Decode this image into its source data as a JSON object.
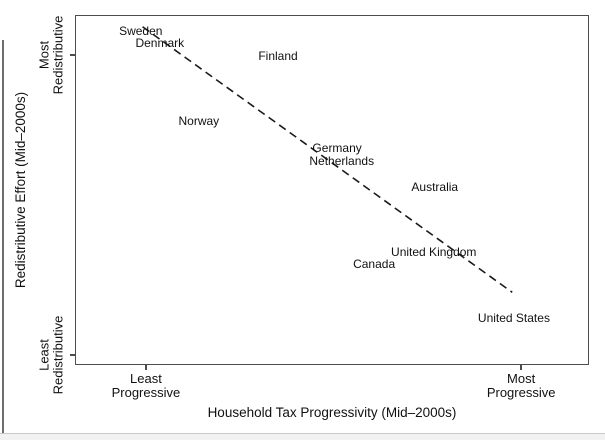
{
  "figure": {
    "background": "#ffffff",
    "left_edge_color": "#6e6e6e",
    "bottom_line_color": "#c9c9c9",
    "bottom_strip_color": "#f2f2f2"
  },
  "chart_data": {
    "type": "scatter",
    "title": "",
    "xlabel": "Household Tax Progressivity (Mid–2000s)",
    "ylabel": "Redistributive Effort (Mid–2000s)",
    "grid": false,
    "legend": "none",
    "axis_color": "#4d4d4d",
    "text_color": "#111111",
    "marker_style": "text-labels-only",
    "axis_ranges": {
      "x": [
        "Least Progressive",
        "Most Progressive"
      ],
      "y": [
        "Least Redistributive",
        "Most Redistributive"
      ]
    },
    "x_ticks": [
      {
        "pos": 0.138,
        "label_lines": [
          "Least",
          "Progressive"
        ]
      },
      {
        "pos": 0.868,
        "label_lines": [
          "Most",
          "Progressive"
        ]
      }
    ],
    "y_ticks": [
      {
        "pos": 0.886,
        "label_lines": [
          "Most",
          "Redistributive"
        ]
      },
      {
        "pos": 0.029,
        "label_lines": [
          "Least",
          "Redistributive"
        ]
      }
    ],
    "points": [
      {
        "label": "Sweden",
        "x": 0.126,
        "y": 0.957
      },
      {
        "label": "Denmark",
        "x": 0.163,
        "y": 0.923
      },
      {
        "label": "Finland",
        "x": 0.393,
        "y": 0.886
      },
      {
        "label": "Norway",
        "x": 0.239,
        "y": 0.7
      },
      {
        "label": "Germany",
        "x": 0.508,
        "y": 0.623
      },
      {
        "label": "Netherlands",
        "x": 0.517,
        "y": 0.586
      },
      {
        "label": "Australia",
        "x": 0.698,
        "y": 0.511
      },
      {
        "label": "United Kingdom",
        "x": 0.696,
        "y": 0.326
      },
      {
        "label": "Canada",
        "x": 0.58,
        "y": 0.291
      },
      {
        "label": "United States",
        "x": 0.852,
        "y": 0.137
      }
    ],
    "trend_line": {
      "style": "dashed",
      "dash": [
        8,
        5
      ],
      "width": 1.6,
      "color": "#1a1a1a",
      "x1": 0.13,
      "y1": 0.969,
      "x2": 0.852,
      "y2": 0.206
    }
  }
}
